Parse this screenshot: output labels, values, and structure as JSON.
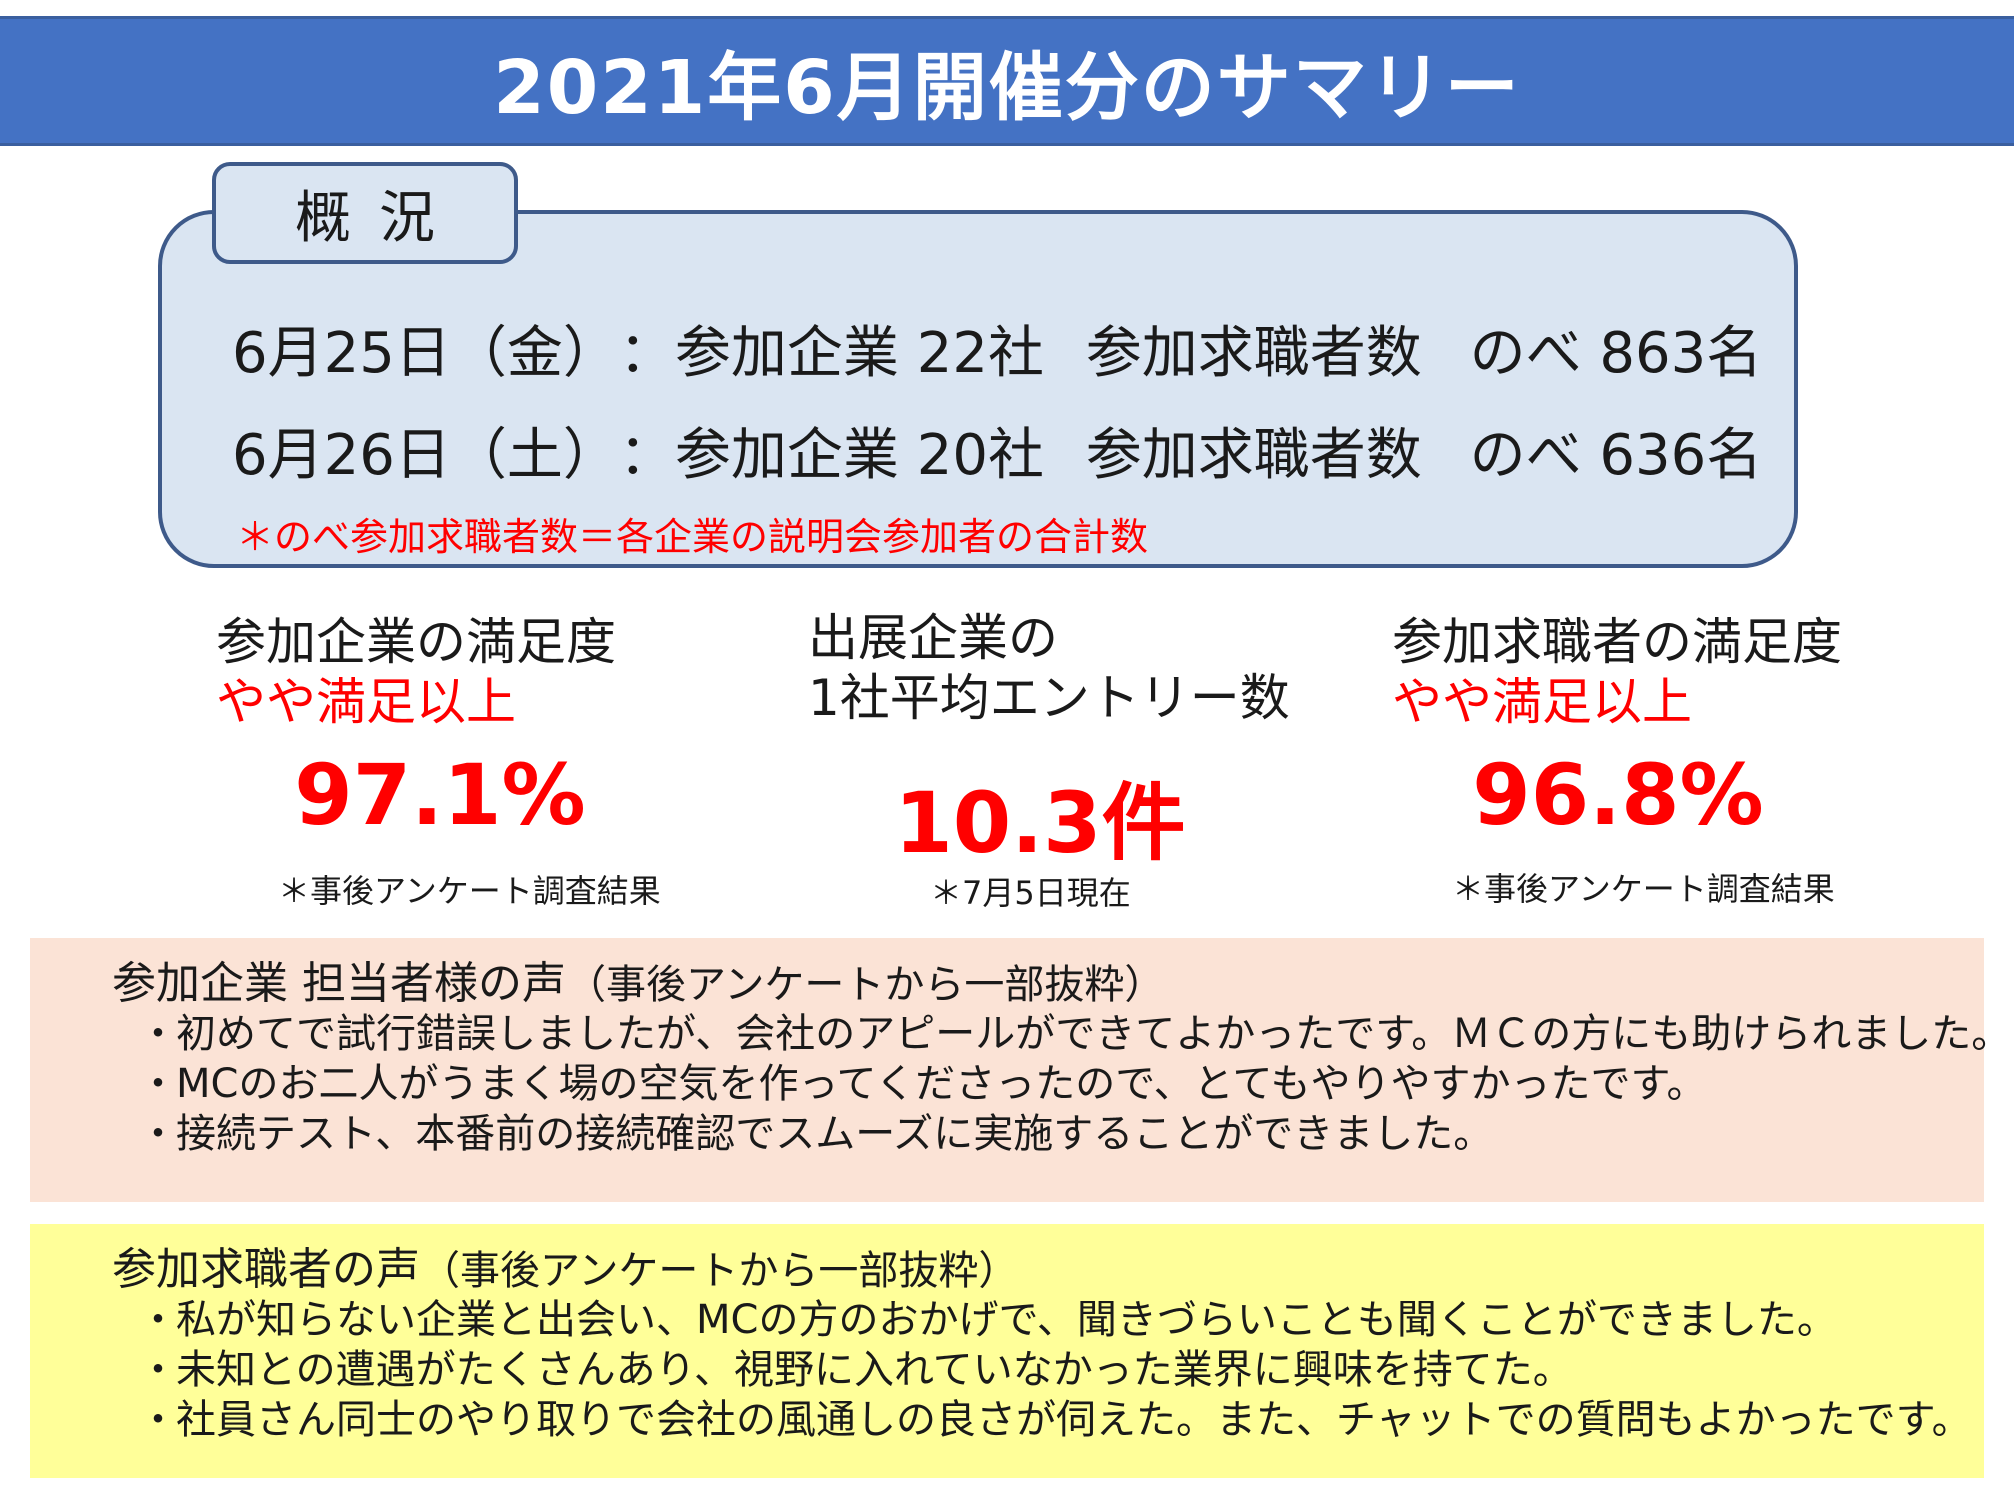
{
  "header": {
    "title": "2021年6月開催分のサマリー"
  },
  "overview": {
    "tab_label": "概況",
    "rows": [
      {
        "date": "6月25日（金）",
        "sep": "：",
        "companies": "参加企業 22社",
        "seekers": "参加求職者数",
        "total": "のべ 863名"
      },
      {
        "date": "6月26日（土）",
        "sep": "：",
        "companies": "参加企業 20社",
        "seekers": "参加求職者数",
        "total": "のべ 636名"
      }
    ],
    "note": "＊のべ参加求職者数＝各企業の説明会参加者の合計数"
  },
  "metrics": [
    {
      "label": "参加企業の満足度",
      "sub": "やや満足以上",
      "value": "97.1%",
      "note": "＊事後アンケート調査結果"
    },
    {
      "label": "出展企業の",
      "label2": "1社平均エントリー数",
      "value": "10.3件",
      "note": "＊7月5日現在"
    },
    {
      "label": "参加求職者の満足度",
      "sub": "やや満足以上",
      "value": "96.8%",
      "note": "＊事後アンケート調査結果"
    }
  ],
  "company_voice": {
    "title": "参加企業 担当者様の声",
    "title_suffix": "（事後アンケートから一部抜粋）",
    "bullet": "・",
    "items": [
      "初めてで試行錯誤しましたが、会社のアピールができてよかったです。ＭＣの方にも助けられました。",
      "MCのお二人がうまく場の空気を作ってくださったので、とてもやりやすかったです。",
      "接続テスト、本番前の接続確認でスムーズに実施することができました。"
    ]
  },
  "seeker_voice": {
    "title": "参加求職者の声",
    "title_suffix": "（事後アンケートから一部抜粋）",
    "bullet": "・",
    "items": [
      "私が知らない企業と出会い、MCの方のおかげで、聞きづらいことも聞くことができました。",
      "未知との遭遇がたくさんあり、視野に入れていなかった業界に興味を持てた。",
      "社員さん同士のやり取りで会社の風通しの良さが伺えた。また、チャットでの質問もよかったです。"
    ]
  },
  "colors": {
    "title_bar": "#4472c4",
    "overview_bg": "#dae5f2",
    "accent_red": "#ff0000",
    "company_bg": "#fbe3d6",
    "seeker_bg": "#ffff99"
  }
}
